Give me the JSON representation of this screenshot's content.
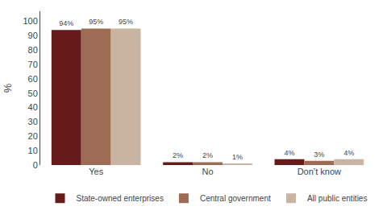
{
  "chart_data": {
    "type": "bar",
    "categories": [
      "Yes",
      "No",
      "Don’t know"
    ],
    "series": [
      {
        "name": "State-owned enterprises",
        "color": "#661A1A",
        "values": [
          94,
          2,
          4
        ],
        "value_labels": [
          "94%",
          "2%",
          "4%"
        ]
      },
      {
        "name": "Central government",
        "color": "#9E6B55",
        "values": [
          95,
          2,
          3
        ],
        "value_labels": [
          "95%",
          "2%",
          "3%"
        ]
      },
      {
        "name": "All public entities",
        "color": "#C8B4A0",
        "values": [
          95,
          1,
          4
        ],
        "value_labels": [
          "95%",
          "1%",
          "4%"
        ]
      }
    ],
    "ylabel": "%",
    "ylim": [
      0,
      107
    ],
    "yticks": [
      0,
      10,
      20,
      30,
      40,
      50,
      60,
      70,
      80,
      90,
      100
    ],
    "grid": false,
    "legend": "bottom",
    "data_labels": true
  }
}
